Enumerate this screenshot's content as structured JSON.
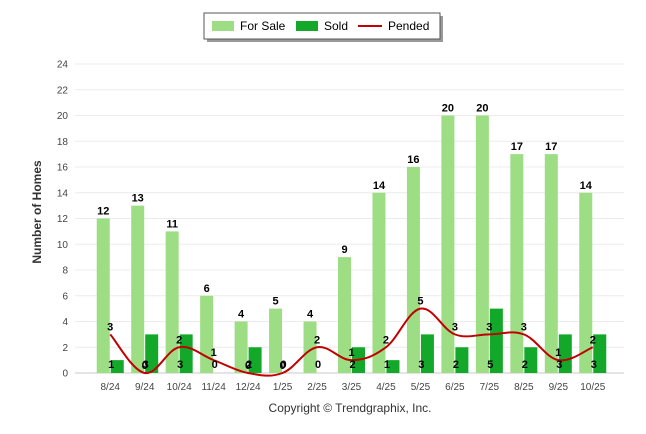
{
  "chart_data": {
    "type": "bar",
    "title": "",
    "xlabel": "",
    "ylabel": "Number of Homes",
    "ylim": [
      0,
      24
    ],
    "yticks": [
      0,
      2,
      4,
      6,
      8,
      10,
      12,
      14,
      16,
      18,
      20,
      22,
      24
    ],
    "grid": true,
    "legend_position": "top-center",
    "categories": [
      "8/24",
      "9/24",
      "10/24",
      "11/24",
      "12/24",
      "1/25",
      "2/25",
      "3/25",
      "4/25",
      "5/25",
      "6/25",
      "7/25",
      "8/25",
      "9/25",
      "10/25"
    ],
    "series": [
      {
        "name": "For Sale",
        "kind": "bar",
        "color": "#9ddd84",
        "values": [
          12,
          13,
          11,
          6,
          4,
          5,
          4,
          9,
          14,
          16,
          20,
          20,
          17,
          17,
          14
        ]
      },
      {
        "name": "Sold",
        "kind": "bar",
        "color": "#14a82a",
        "values": [
          1,
          3,
          3,
          0,
          2,
          0,
          0,
          2,
          1,
          3,
          2,
          5,
          2,
          3,
          3
        ]
      },
      {
        "name": "Pended",
        "kind": "line",
        "color": "#c00000",
        "values": [
          3,
          0,
          2,
          1,
          0,
          0,
          2,
          1,
          2,
          5,
          3,
          3,
          3,
          1,
          2
        ]
      }
    ],
    "footer": "Copyright © Trendgraphix, Inc."
  }
}
